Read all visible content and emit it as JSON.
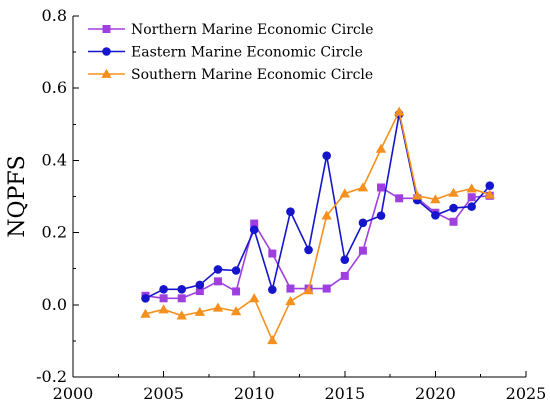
{
  "chart_data": {
    "type": "line",
    "title": "",
    "xlabel": "",
    "ylabel": "NQPFS",
    "xlim": [
      2000,
      2025
    ],
    "ylim": [
      -0.2,
      0.8
    ],
    "x_ticks": [
      "2000",
      "2005",
      "2010",
      "2015",
      "2020",
      "2025"
    ],
    "y_ticks": [
      "-0.2",
      "0.0",
      "0.2",
      "0.4",
      "0.6",
      "0.8"
    ],
    "grid": false,
    "legend_position": "top-left",
    "x": [
      2004,
      2005,
      2006,
      2007,
      2008,
      2009,
      2010,
      2011,
      2012,
      2013,
      2014,
      2015,
      2016,
      2017,
      2018,
      2019,
      2020,
      2021,
      2022,
      2023
    ],
    "series": [
      {
        "name": "Northern Marine Economic Circle",
        "color": "#a03fdf",
        "marker": "square",
        "values": [
          0.025,
          0.018,
          0.018,
          0.038,
          0.065,
          0.037,
          0.225,
          0.142,
          0.045,
          0.045,
          0.045,
          0.08,
          0.15,
          0.325,
          0.295,
          0.295,
          0.255,
          0.23,
          0.298,
          0.302
        ]
      },
      {
        "name": "Eastern Marine Economic Circle",
        "color": "#1515cc",
        "marker": "circle",
        "values": [
          0.018,
          0.043,
          0.043,
          0.055,
          0.098,
          0.095,
          0.208,
          0.042,
          0.258,
          0.152,
          0.413,
          0.125,
          0.227,
          0.247,
          0.528,
          0.29,
          0.248,
          0.268,
          0.272,
          0.33
        ]
      },
      {
        "name": "Southern Marine Economic Circle",
        "color": "#f5901e",
        "marker": "triangle",
        "values": [
          -0.025,
          -0.013,
          -0.03,
          -0.02,
          -0.008,
          -0.018,
          0.018,
          -0.098,
          0.01,
          0.04,
          0.247,
          0.308,
          0.325,
          0.432,
          0.535,
          0.302,
          0.292,
          0.31,
          0.322,
          0.305
        ]
      }
    ]
  }
}
